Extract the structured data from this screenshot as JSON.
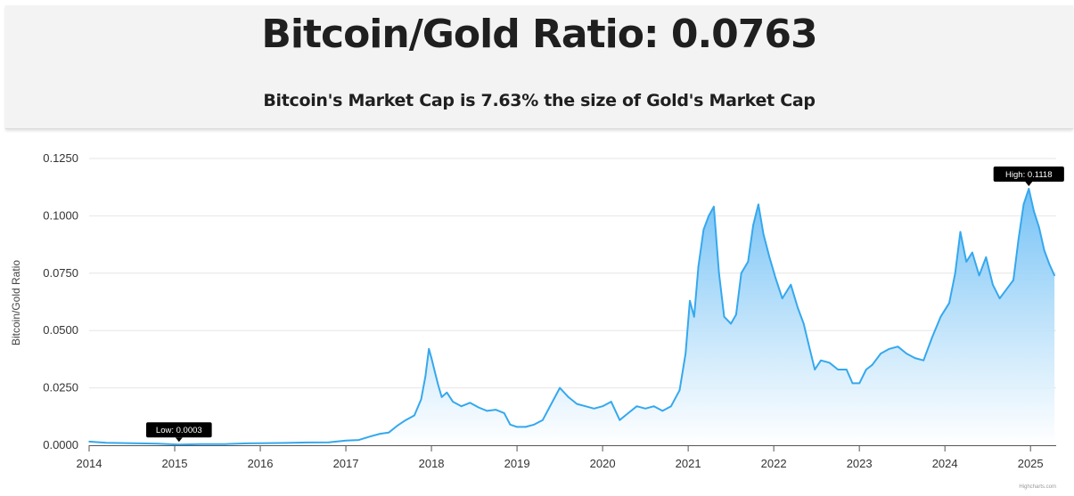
{
  "header": {
    "title": "Bitcoin/Gold Ratio: 0.0763",
    "subtitle": "Bitcoin's Market Cap is 7.63% the size of Gold's Market Cap"
  },
  "colors": {
    "line": "#35a8ee",
    "area_top": "#6cbef5",
    "area_bottom": "#ffffff",
    "grid": "#e6e6e6",
    "tooltip_bg": "#000000",
    "text": "#333333"
  },
  "chart_data": {
    "type": "area",
    "title": "",
    "xlabel": "",
    "ylabel": "Bitcoin/Gold Ratio",
    "xlim": [
      2014.0,
      2025.3
    ],
    "ylim": [
      0,
      0.125
    ],
    "grid": true,
    "x_ticks": [
      "2014",
      "2015",
      "2016",
      "2017",
      "2018",
      "2019",
      "2020",
      "2021",
      "2022",
      "2023",
      "2024",
      "2025"
    ],
    "y_ticks": [
      "0.0000",
      "0.0250",
      "0.0500",
      "0.0750",
      "0.1000",
      "0.1250"
    ],
    "annotations": [
      {
        "label": "Low: 0.0003",
        "x": 2015.05,
        "y": 0.0003
      },
      {
        "label": "High: 0.1118",
        "x": 2024.98,
        "y": 0.1118
      }
    ],
    "series": [
      {
        "points": [
          [
            2014.0,
            0.0016
          ],
          [
            2014.2,
            0.0011
          ],
          [
            2014.5,
            0.0009
          ],
          [
            2014.8,
            0.0007
          ],
          [
            2015.05,
            0.0003
          ],
          [
            2015.3,
            0.0005
          ],
          [
            2015.6,
            0.0005
          ],
          [
            2015.85,
            0.0008
          ],
          [
            2016.0,
            0.0009
          ],
          [
            2016.3,
            0.001
          ],
          [
            2016.55,
            0.0012
          ],
          [
            2016.8,
            0.0013
          ],
          [
            2017.0,
            0.002
          ],
          [
            2017.15,
            0.0023
          ],
          [
            2017.3,
            0.004
          ],
          [
            2017.4,
            0.005
          ],
          [
            2017.5,
            0.0055
          ],
          [
            2017.6,
            0.0085
          ],
          [
            2017.7,
            0.011
          ],
          [
            2017.8,
            0.013
          ],
          [
            2017.88,
            0.02
          ],
          [
            2017.93,
            0.03
          ],
          [
            2017.97,
            0.042
          ],
          [
            2018.0,
            0.038
          ],
          [
            2018.04,
            0.032
          ],
          [
            2018.08,
            0.026
          ],
          [
            2018.12,
            0.021
          ],
          [
            2018.18,
            0.023
          ],
          [
            2018.25,
            0.019
          ],
          [
            2018.35,
            0.017
          ],
          [
            2018.45,
            0.0185
          ],
          [
            2018.55,
            0.0165
          ],
          [
            2018.65,
            0.015
          ],
          [
            2018.75,
            0.0155
          ],
          [
            2018.85,
            0.014
          ],
          [
            2018.92,
            0.009
          ],
          [
            2019.0,
            0.008
          ],
          [
            2019.1,
            0.008
          ],
          [
            2019.2,
            0.009
          ],
          [
            2019.3,
            0.011
          ],
          [
            2019.4,
            0.018
          ],
          [
            2019.5,
            0.025
          ],
          [
            2019.6,
            0.021
          ],
          [
            2019.7,
            0.018
          ],
          [
            2019.8,
            0.017
          ],
          [
            2019.9,
            0.016
          ],
          [
            2020.0,
            0.017
          ],
          [
            2020.1,
            0.019
          ],
          [
            2020.2,
            0.011
          ],
          [
            2020.3,
            0.014
          ],
          [
            2020.4,
            0.017
          ],
          [
            2020.5,
            0.016
          ],
          [
            2020.6,
            0.017
          ],
          [
            2020.7,
            0.015
          ],
          [
            2020.8,
            0.017
          ],
          [
            2020.9,
            0.024
          ],
          [
            2020.97,
            0.04
          ],
          [
            2021.02,
            0.063
          ],
          [
            2021.07,
            0.056
          ],
          [
            2021.12,
            0.078
          ],
          [
            2021.18,
            0.094
          ],
          [
            2021.24,
            0.1
          ],
          [
            2021.3,
            0.104
          ],
          [
            2021.36,
            0.075
          ],
          [
            2021.42,
            0.056
          ],
          [
            2021.5,
            0.053
          ],
          [
            2021.56,
            0.057
          ],
          [
            2021.62,
            0.075
          ],
          [
            2021.7,
            0.08
          ],
          [
            2021.76,
            0.096
          ],
          [
            2021.82,
            0.105
          ],
          [
            2021.88,
            0.092
          ],
          [
            2021.95,
            0.082
          ],
          [
            2022.02,
            0.073
          ],
          [
            2022.1,
            0.064
          ],
          [
            2022.2,
            0.07
          ],
          [
            2022.28,
            0.06
          ],
          [
            2022.35,
            0.053
          ],
          [
            2022.42,
            0.042
          ],
          [
            2022.48,
            0.033
          ],
          [
            2022.55,
            0.037
          ],
          [
            2022.65,
            0.036
          ],
          [
            2022.75,
            0.033
          ],
          [
            2022.85,
            0.033
          ],
          [
            2022.92,
            0.027
          ],
          [
            2023.0,
            0.027
          ],
          [
            2023.08,
            0.033
          ],
          [
            2023.15,
            0.035
          ],
          [
            2023.25,
            0.04
          ],
          [
            2023.35,
            0.042
          ],
          [
            2023.45,
            0.043
          ],
          [
            2023.55,
            0.04
          ],
          [
            2023.65,
            0.038
          ],
          [
            2023.75,
            0.037
          ],
          [
            2023.85,
            0.047
          ],
          [
            2023.95,
            0.056
          ],
          [
            2024.05,
            0.062
          ],
          [
            2024.12,
            0.075
          ],
          [
            2024.18,
            0.093
          ],
          [
            2024.25,
            0.08
          ],
          [
            2024.32,
            0.084
          ],
          [
            2024.4,
            0.074
          ],
          [
            2024.48,
            0.082
          ],
          [
            2024.56,
            0.07
          ],
          [
            2024.64,
            0.064
          ],
          [
            2024.72,
            0.068
          ],
          [
            2024.8,
            0.072
          ],
          [
            2024.86,
            0.09
          ],
          [
            2024.92,
            0.105
          ],
          [
            2024.98,
            0.1118
          ],
          [
            2025.04,
            0.102
          ],
          [
            2025.1,
            0.095
          ],
          [
            2025.16,
            0.085
          ],
          [
            2025.22,
            0.079
          ],
          [
            2025.28,
            0.074
          ]
        ]
      }
    ]
  },
  "footer": {
    "credit": "Highcharts.com"
  }
}
